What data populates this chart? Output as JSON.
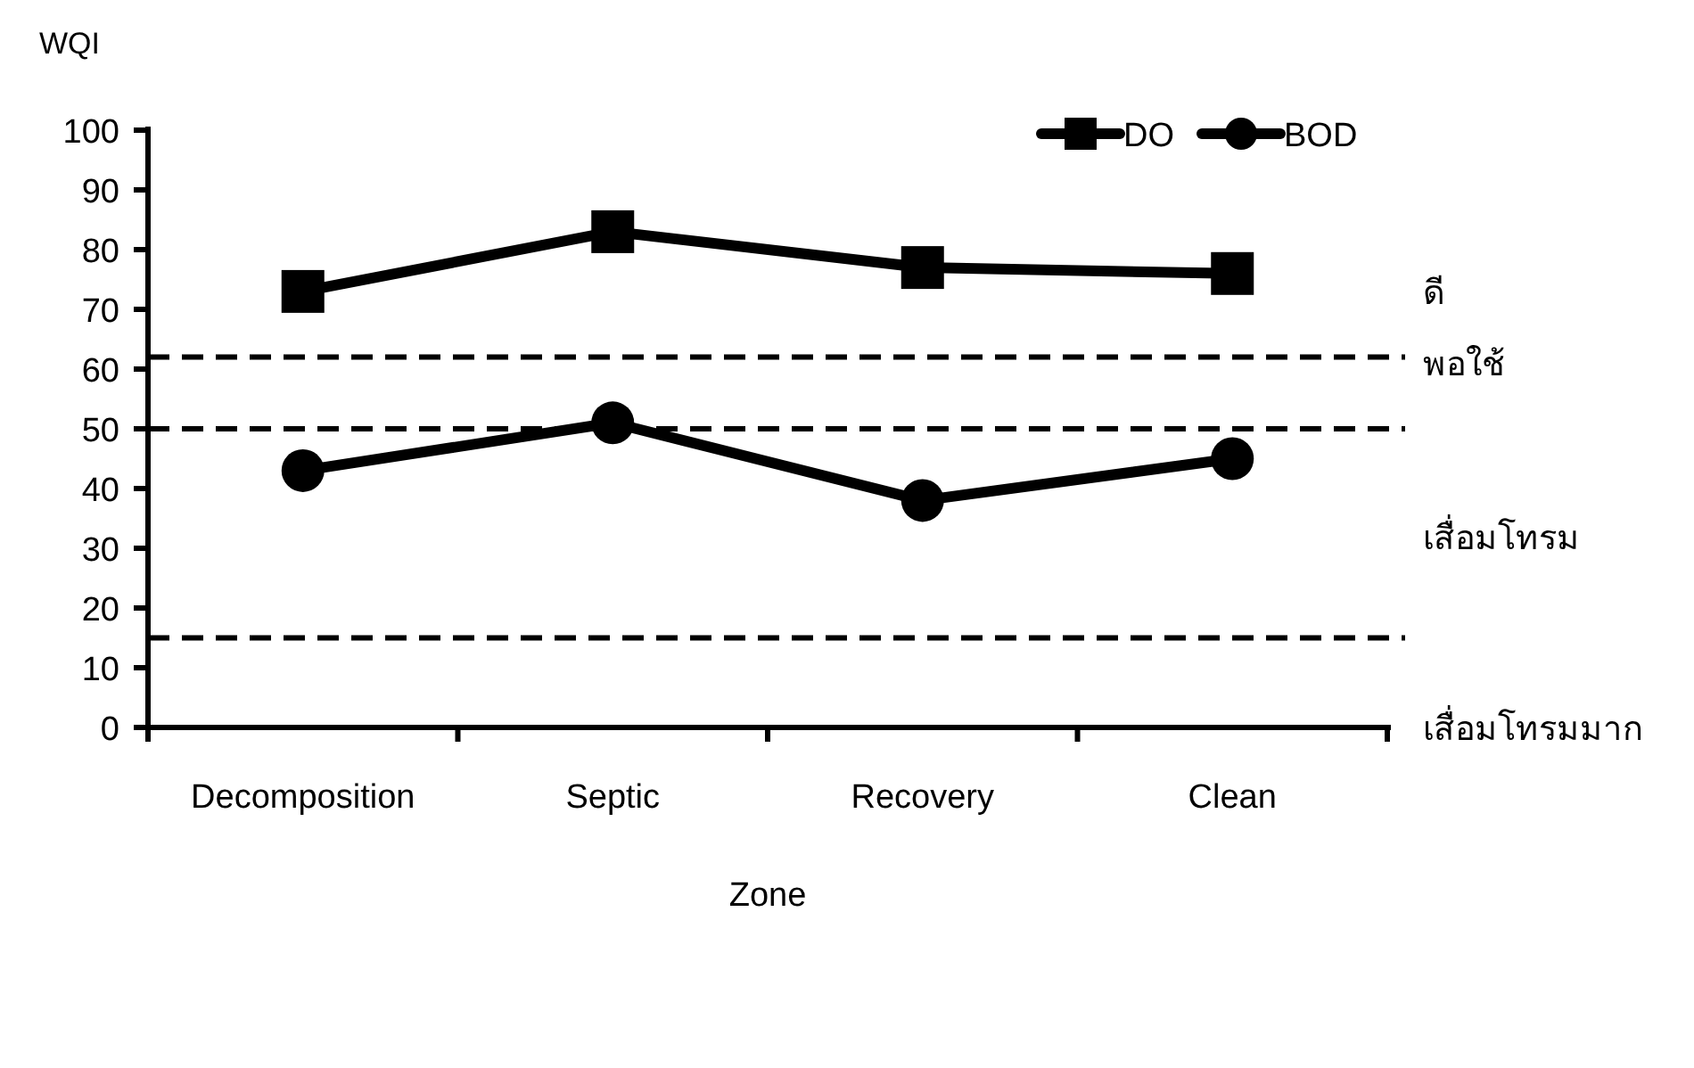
{
  "chart_data": {
    "type": "line",
    "ylabel": "WQI",
    "xlabel": "Zone",
    "categories": [
      "Decomposition",
      "Septic",
      "Recovery",
      "Clean"
    ],
    "series": [
      {
        "name": "DO",
        "color": "#000000",
        "marker": "square",
        "values": [
          73,
          83,
          77,
          76
        ]
      },
      {
        "name": "BOD",
        "color": "#000000",
        "marker": "circle",
        "values": [
          43,
          51,
          38,
          45
        ]
      }
    ],
    "ylim": [
      0,
      100
    ],
    "yticks": [
      0,
      10,
      20,
      30,
      40,
      50,
      60,
      70,
      80,
      90,
      100
    ],
    "ref_lines": [
      {
        "axis": "y",
        "value": 62,
        "color": "#000000",
        "line_style": "dashed",
        "label": "พอใช้"
      },
      {
        "axis": "y",
        "value": 50,
        "color": "#000000",
        "line_style": "dashed"
      },
      {
        "axis": "y",
        "value": 15,
        "color": "#000000",
        "line_style": "dashed"
      }
    ],
    "annotations": [
      "ดี",
      "เสื่อมโทรม",
      "เสื่อมโทรมมาก"
    ],
    "grid": false,
    "legend": "top right",
    "line_style": "solid"
  }
}
